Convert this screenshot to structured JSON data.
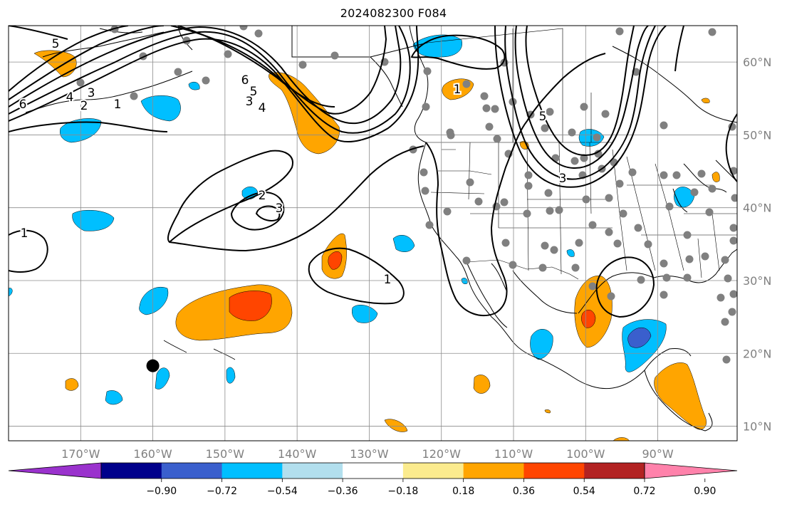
{
  "title": "2024082300 F084",
  "map": {
    "lon_range": [
      -180,
      -79
    ],
    "lat_range": [
      8,
      65
    ],
    "lon_ticks": [
      {
        "value": -170,
        "label": "170°W"
      },
      {
        "value": -160,
        "label": "160°W"
      },
      {
        "value": -150,
        "label": "150°W"
      },
      {
        "value": -140,
        "label": "140°W"
      },
      {
        "value": -130,
        "label": "130°W"
      },
      {
        "value": -120,
        "label": "120°W"
      },
      {
        "value": -110,
        "label": "110°W"
      },
      {
        "value": -100,
        "label": "100°W"
      },
      {
        "value": -90,
        "label": "90°W"
      }
    ],
    "lat_ticks": [
      {
        "value": 60,
        "label": "60°N"
      },
      {
        "value": 50,
        "label": "50°N"
      },
      {
        "value": 40,
        "label": "40°N"
      },
      {
        "value": 30,
        "label": "30°N"
      },
      {
        "value": 20,
        "label": "20°N"
      },
      {
        "value": 10,
        "label": "10°N"
      }
    ],
    "gridlines": true,
    "contour_labels": [
      "5",
      "6",
      "4",
      "3",
      "2",
      "1",
      "6",
      "5",
      "4",
      "3",
      "2",
      "3",
      "1",
      "1",
      "1",
      "5",
      "3"
    ],
    "marker": {
      "lon": -160,
      "lat": 18.3,
      "color": "#000000"
    }
  },
  "colorbar": {
    "colors": [
      "#9a32cd",
      "#00008b",
      "#3a5fcd",
      "#00bfff",
      "#b2dfee",
      "#ffffff",
      "#fbeb8e",
      "#ffa500",
      "#ff4500",
      "#b22222",
      "#ff82ab"
    ],
    "tick_labels": [
      "−0.90",
      "−0.72",
      "−0.54",
      "−0.36",
      "−0.18",
      "0.18",
      "0.36",
      "0.54",
      "0.72",
      "0.90"
    ],
    "extend": "both"
  }
}
